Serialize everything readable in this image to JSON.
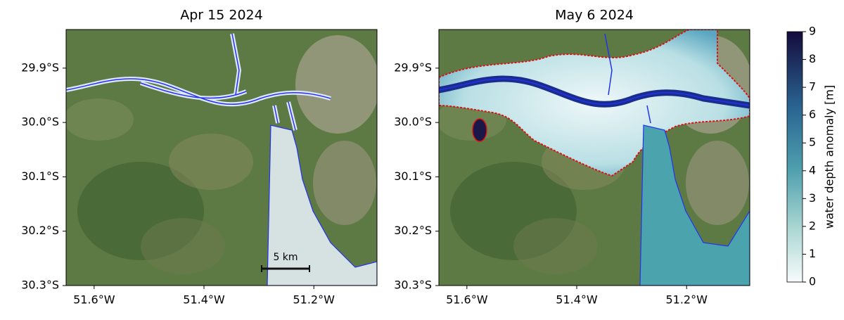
{
  "panels": [
    {
      "title": "Apr 15 2024",
      "xlim": [
        -51.651,
        -51.085
      ],
      "ylim": [
        -30.3,
        -29.829
      ],
      "xticks": [
        {
          "value": -51.6,
          "label": "51.6°W"
        },
        {
          "value": -51.4,
          "label": "51.4°W"
        },
        {
          "value": -51.2,
          "label": "51.2°W"
        }
      ],
      "yticks": [
        {
          "value": -29.9,
          "label": "29.9°S"
        },
        {
          "value": -30.0,
          "label": "30.0°S"
        },
        {
          "value": -30.1,
          "label": "30.1°S"
        },
        {
          "value": -30.2,
          "label": "30.2°S"
        },
        {
          "value": -30.3,
          "label": "30.3°S"
        }
      ],
      "scale_bar": "5 km"
    },
    {
      "title": "May 6 2024",
      "xlim": [
        -51.651,
        -51.085
      ],
      "ylim": [
        -30.3,
        -29.829
      ],
      "xticks": [
        {
          "value": -51.6,
          "label": "51.6°W"
        },
        {
          "value": -51.4,
          "label": "51.4°W"
        },
        {
          "value": -51.2,
          "label": "51.2°W"
        }
      ],
      "yticks": [
        {
          "value": -29.9,
          "label": "29.9°S"
        },
        {
          "value": -30.0,
          "label": "30.0°S"
        },
        {
          "value": -30.1,
          "label": "30.1°S"
        },
        {
          "value": -30.2,
          "label": "30.2°S"
        },
        {
          "value": -30.3,
          "label": "30.3°S"
        }
      ]
    }
  ],
  "colorbar": {
    "label": "water depth anomaly [m]",
    "lim": [
      0,
      9
    ],
    "ticks": [
      0,
      1,
      2,
      3,
      4,
      5,
      6,
      7,
      8,
      9
    ]
  }
}
